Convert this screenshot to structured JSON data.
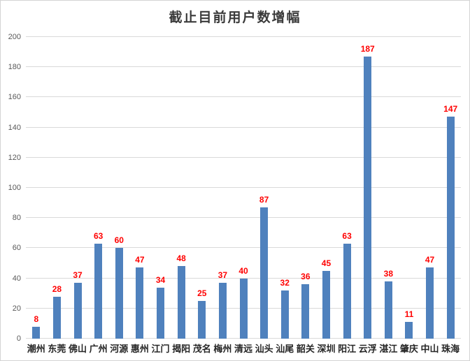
{
  "chart_data": {
    "type": "bar",
    "title": "截止目前用户数增幅",
    "categories": [
      "潮州",
      "东莞",
      "佛山",
      "广州",
      "河源",
      "惠州",
      "江门",
      "揭阳",
      "茂名",
      "梅州",
      "清远",
      "汕头",
      "汕尾",
      "韶关",
      "深圳",
      "阳江",
      "云浮",
      "湛江",
      "肇庆",
      "中山",
      "珠海"
    ],
    "values": [
      8,
      28,
      37,
      63,
      60,
      47,
      34,
      48,
      25,
      37,
      40,
      87,
      32,
      36,
      45,
      63,
      187,
      38,
      11,
      47,
      147
    ],
    "xlabel": "",
    "ylabel": "",
    "ylim": [
      0,
      200
    ],
    "yticks": [
      0,
      20,
      40,
      60,
      80,
      100,
      120,
      140,
      160,
      180,
      200
    ],
    "grid": true,
    "legend": false,
    "colors": {
      "bar": "#4F81BD",
      "value_label": "#FF0000",
      "gridline": "#D9D9D9",
      "axis_tick_label": "#595959",
      "category_label": "#262626",
      "title": "#3A3A3A"
    }
  }
}
